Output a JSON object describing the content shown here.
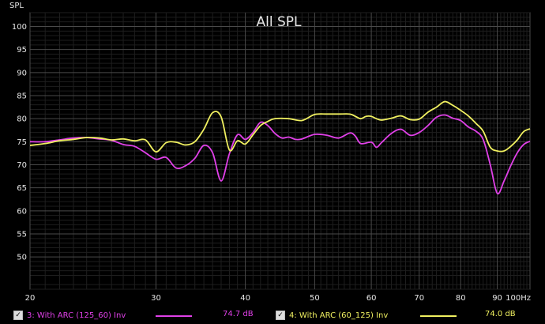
{
  "chart_data": {
    "type": "line",
    "title": "All SPL",
    "ylabel": "SPL",
    "xlabel": "",
    "x_scale": "log",
    "xlim": [
      20,
      100
    ],
    "ylim": [
      43,
      103
    ],
    "grid": true,
    "x_ticks": [
      {
        "value": 20,
        "label": "20"
      },
      {
        "value": 30,
        "label": "30"
      },
      {
        "value": 40,
        "label": "40"
      },
      {
        "value": 50,
        "label": "50"
      },
      {
        "value": 60,
        "label": "60"
      },
      {
        "value": 70,
        "label": "70"
      },
      {
        "value": 80,
        "label": "80"
      },
      {
        "value": 90,
        "label": "90"
      },
      {
        "value": 100,
        "label": "100Hz"
      }
    ],
    "y_ticks": [
      50,
      55,
      60,
      65,
      70,
      75,
      80,
      85,
      90,
      95,
      100
    ],
    "series": [
      {
        "name": "3: With ARC (125_60) Inv",
        "color": "#e040e8",
        "value_label": "74.7 dB",
        "points": [
          [
            20,
            75.0
          ],
          [
            21,
            75.0
          ],
          [
            22,
            75.4
          ],
          [
            23,
            75.8
          ],
          [
            24,
            75.9
          ],
          [
            25,
            75.6
          ],
          [
            26,
            75.3
          ],
          [
            27,
            74.4
          ],
          [
            28,
            74.0
          ],
          [
            29,
            72.6
          ],
          [
            30,
            71.2
          ],
          [
            31,
            71.6
          ],
          [
            32,
            69.3
          ],
          [
            33,
            69.8
          ],
          [
            34,
            71.4
          ],
          [
            35,
            74.2
          ],
          [
            36,
            72.6
          ],
          [
            37,
            66.5
          ],
          [
            38,
            72.4
          ],
          [
            39,
            76.5
          ],
          [
            40,
            75.5
          ],
          [
            41,
            77.0
          ],
          [
            42,
            79.2
          ],
          [
            43,
            78.5
          ],
          [
            44,
            76.8
          ],
          [
            45,
            75.8
          ],
          [
            46,
            76.0
          ],
          [
            47,
            75.5
          ],
          [
            48,
            75.6
          ],
          [
            50,
            76.6
          ],
          [
            52,
            76.4
          ],
          [
            54,
            75.8
          ],
          [
            56,
            76.9
          ],
          [
            57,
            76.2
          ],
          [
            58,
            74.6
          ],
          [
            60,
            74.9
          ],
          [
            61,
            73.8
          ],
          [
            62,
            74.8
          ],
          [
            64,
            76.8
          ],
          [
            66,
            77.7
          ],
          [
            68,
            76.4
          ],
          [
            70,
            77.0
          ],
          [
            72,
            78.5
          ],
          [
            74,
            80.3
          ],
          [
            76,
            80.8
          ],
          [
            78,
            80.1
          ],
          [
            80,
            79.6
          ],
          [
            82,
            78.2
          ],
          [
            84,
            77.3
          ],
          [
            86,
            75.5
          ],
          [
            88,
            70.0
          ],
          [
            90,
            63.8
          ],
          [
            92,
            66.5
          ],
          [
            94,
            69.8
          ],
          [
            96,
            72.6
          ],
          [
            98,
            74.4
          ],
          [
            100,
            75.1
          ]
        ]
      },
      {
        "name": "4: With ARC (60_125) Inv",
        "color": "#f0f060",
        "value_label": "74.0 dB",
        "points": [
          [
            20,
            74.2
          ],
          [
            21,
            74.6
          ],
          [
            22,
            75.2
          ],
          [
            23,
            75.5
          ],
          [
            24,
            75.9
          ],
          [
            25,
            75.8
          ],
          [
            26,
            75.4
          ],
          [
            27,
            75.6
          ],
          [
            28,
            75.2
          ],
          [
            29,
            75.4
          ],
          [
            30,
            72.8
          ],
          [
            31,
            74.8
          ],
          [
            32,
            74.9
          ],
          [
            33,
            74.3
          ],
          [
            34,
            75.0
          ],
          [
            35,
            77.7
          ],
          [
            36,
            81.3
          ],
          [
            37,
            80.4
          ],
          [
            38,
            73.2
          ],
          [
            39,
            75.2
          ],
          [
            40,
            74.5
          ],
          [
            41,
            76.5
          ],
          [
            42,
            78.5
          ],
          [
            43,
            79.4
          ],
          [
            44,
            80.0
          ],
          [
            46,
            80.0
          ],
          [
            48,
            79.6
          ],
          [
            50,
            80.9
          ],
          [
            52,
            81.0
          ],
          [
            54,
            81.0
          ],
          [
            56,
            81.0
          ],
          [
            57,
            80.5
          ],
          [
            58,
            80.0
          ],
          [
            59,
            80.5
          ],
          [
            60,
            80.5
          ],
          [
            61,
            80.0
          ],
          [
            62,
            79.7
          ],
          [
            64,
            80.1
          ],
          [
            66,
            80.6
          ],
          [
            68,
            79.8
          ],
          [
            70,
            79.9
          ],
          [
            72,
            81.4
          ],
          [
            74,
            82.5
          ],
          [
            76,
            83.7
          ],
          [
            78,
            82.9
          ],
          [
            80,
            81.8
          ],
          [
            82,
            80.6
          ],
          [
            84,
            79.0
          ],
          [
            86,
            77.3
          ],
          [
            88,
            73.8
          ],
          [
            90,
            73.0
          ],
          [
            92,
            73.0
          ],
          [
            94,
            74.0
          ],
          [
            96,
            75.4
          ],
          [
            98,
            77.2
          ],
          [
            100,
            77.8
          ]
        ]
      }
    ]
  }
}
